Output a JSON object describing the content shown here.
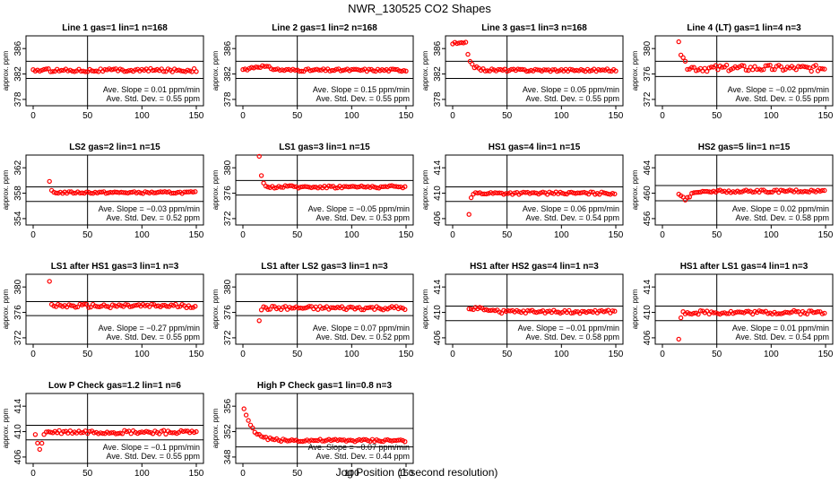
{
  "figure": {
    "title": "NWR_130525  CO2 Shapes",
    "xlabel": "Jog Position (1 second resolution)"
  },
  "chart_data": [
    {
      "type": "scatter",
      "title": "Line 1 gas=1 lin=1 n=168",
      "ylabel": "approx. ppm",
      "xlim": [
        0,
        150
      ],
      "ylim": [
        377,
        388
      ],
      "yticks": [
        378,
        382,
        386
      ],
      "xticks": [
        0,
        50,
        100,
        150
      ],
      "hlines": [
        384,
        381.3
      ],
      "vline": 50,
      "start_x": 0,
      "base": 382.6,
      "noise": 0.25,
      "spike": null,
      "slope": "Ave. Slope =  0.01  ppm/min",
      "std": "Ave. Std. Dev. =  0.55  ppm"
    },
    {
      "type": "scatter",
      "title": "Line 2 gas=1 lin=2 n=168",
      "ylabel": "approx. ppm",
      "xlim": [
        0,
        150
      ],
      "ylim": [
        377,
        388
      ],
      "yticks": [
        378,
        382,
        386
      ],
      "xticks": [
        0,
        50,
        100,
        150
      ],
      "hlines": [
        384,
        381.3
      ],
      "vline": 50,
      "start_x": 0,
      "base": 382.6,
      "noise": 0.2,
      "spike": {
        "type": "bump",
        "amp": 0.6,
        "center": 16,
        "width": 12
      },
      "slope": "Ave. Slope =  0.15  ppm/min",
      "std": "Ave. Std. Dev. =  0.55  ppm"
    },
    {
      "type": "scatter",
      "title": "Line 3 gas=1 lin=3 n=168",
      "ylabel": "approx. ppm",
      "xlim": [
        0,
        150
      ],
      "ylim": [
        377,
        388
      ],
      "yticks": [
        378,
        382,
        386
      ],
      "xticks": [
        0,
        50,
        100,
        150
      ],
      "hlines": [
        384,
        381.3
      ],
      "vline": 50,
      "start_x": 0,
      "base": 382.6,
      "noise": 0.2,
      "spike": {
        "type": "plateau",
        "amp": 4.2,
        "end": 12,
        "decay": 4
      },
      "slope": "Ave. Slope =  0.05  ppm/min",
      "std": "Ave. Std. Dev. =  0.55  ppm"
    },
    {
      "type": "scatter",
      "title": "Line 4 (LT) gas=1 lin=4 n=3",
      "ylabel": "approx. ppm",
      "xlim": [
        0,
        150
      ],
      "ylim": [
        371,
        382
      ],
      "yticks": [
        372,
        376,
        380
      ],
      "xticks": [
        0,
        50,
        100,
        150
      ],
      "hlines": [
        378,
        375.6
      ],
      "vline": 50,
      "start_x": 15,
      "base": 376.9,
      "noise": 0.5,
      "spike": {
        "type": "decay",
        "amp": 4.5,
        "tau": 3
      },
      "slope": "Ave. Slope = −0.02  ppm/min",
      "std": "Ave. Std. Dev. =  0.55  ppm"
    },
    {
      "type": "scatter",
      "title": "LS2 gas=2 lin=1 n=15",
      "ylabel": "approx. ppm",
      "xlim": [
        0,
        150
      ],
      "ylim": [
        353,
        364
      ],
      "yticks": [
        354,
        358,
        362
      ],
      "xticks": [
        0,
        50,
        100,
        150
      ],
      "hlines": [
        359,
        356.7
      ],
      "vline": 50,
      "start_x": 15,
      "base": 358.1,
      "noise": 0.15,
      "spike": {
        "type": "decay",
        "amp": 1.6,
        "tau": 1.2
      },
      "slope": "Ave. Slope = −0.03  ppm/min",
      "std": "Ave. Std. Dev. =  0.52  ppm"
    },
    {
      "type": "scatter",
      "title": "LS1 gas=3 lin=1 n=15",
      "ylabel": "approx. ppm",
      "xlim": [
        0,
        150
      ],
      "ylim": [
        371,
        382
      ],
      "yticks": [
        372,
        376,
        380
      ],
      "xticks": [
        0,
        50,
        100,
        150
      ],
      "hlines": [
        378,
        375.7
      ],
      "vline": 50,
      "start_x": 15,
      "base": 377,
      "noise": 0.2,
      "spike": {
        "type": "decay",
        "amp": 6,
        "tau": 1.5
      },
      "slope": "Ave. Slope = −0.05  ppm/min",
      "std": "Ave. Std. Dev. =  0.53  ppm"
    },
    {
      "type": "scatter",
      "title": "HS1 gas=4 lin=1 n=15",
      "ylabel": "approx. ppm",
      "xlim": [
        0,
        150
      ],
      "ylim": [
        405,
        416
      ],
      "yticks": [
        406,
        410,
        414
      ],
      "xticks": [
        0,
        50,
        100,
        150
      ],
      "hlines": [
        411,
        408.7
      ],
      "vline": 50,
      "start_x": 15,
      "base": 410,
      "noise": 0.2,
      "spike": {
        "type": "decay",
        "amp": -3.4,
        "tau": 1.2
      },
      "slope": "Ave. Slope =  0.06  ppm/min",
      "std": "Ave. Std. Dev. =  0.54  ppm"
    },
    {
      "type": "scatter",
      "title": "HS2 gas=5 lin=1 n=15",
      "ylabel": "approx. ppm",
      "xlim": [
        0,
        150
      ],
      "ylim": [
        455,
        466
      ],
      "yticks": [
        456,
        460,
        464
      ],
      "xticks": [
        0,
        50,
        100,
        150
      ],
      "hlines": [
        461.2,
        458.8
      ],
      "vline": 50,
      "start_x": 15,
      "base": 460.3,
      "noise": 0.2,
      "spike": {
        "type": "dip",
        "amp": -1.2,
        "center": 21,
        "width": 6
      },
      "slope": "Ave. Slope =  0.02  ppm/min",
      "std": "Ave. Std. Dev. =  0.58  ppm"
    },
    {
      "type": "scatter",
      "title": "LS1 after HS1 gas=3 lin=1 n=3",
      "ylabel": "approx. ppm",
      "xlim": [
        0,
        150
      ],
      "ylim": [
        371,
        382
      ],
      "yticks": [
        372,
        376,
        380
      ],
      "xticks": [
        0,
        50,
        100,
        150
      ],
      "hlines": [
        377.7,
        375.5
      ],
      "vline": 50,
      "start_x": 15,
      "base": 377,
      "noise": 0.3,
      "spike": {
        "type": "decay",
        "amp": 4,
        "tau": 1
      },
      "slope": "Ave. Slope = −0.27  ppm/min",
      "std": "Ave. Std. Dev. =  0.55  ppm"
    },
    {
      "type": "scatter",
      "title": "LS1 after LS2 gas=3 lin=1 n=3",
      "ylabel": "approx. ppm",
      "xlim": [
        0,
        150
      ],
      "ylim": [
        371,
        382
      ],
      "yticks": [
        372,
        376,
        380
      ],
      "xticks": [
        0,
        50,
        100,
        150
      ],
      "hlines": [
        377.7,
        375.5
      ],
      "vline": 50,
      "start_x": 15,
      "base": 376.7,
      "noise": 0.3,
      "spike": {
        "type": "decay",
        "amp": -1.8,
        "tau": 1
      },
      "slope": "Ave. Slope =  0.07  ppm/min",
      "std": "Ave. Std. Dev. =  0.52  ppm"
    },
    {
      "type": "scatter",
      "title": "HS1 after HS2 gas=4 lin=1 n=3",
      "ylabel": "approx. ppm",
      "xlim": [
        0,
        150
      ],
      "ylim": [
        405,
        416
      ],
      "yticks": [
        406,
        410,
        414
      ],
      "xticks": [
        0,
        50,
        100,
        150
      ],
      "hlines": [
        411,
        408.7
      ],
      "vline": 50,
      "start_x": 15,
      "base": 410.1,
      "noise": 0.25,
      "spike": {
        "type": "bump",
        "amp": 0.6,
        "center": 25,
        "width": 10
      },
      "slope": "Ave. Slope = −0.01  ppm/min",
      "std": "Ave. Std. Dev. =  0.58  ppm"
    },
    {
      "type": "scatter",
      "title": "HS1 after LS1 gas=4 lin=1 n=3",
      "ylabel": "approx. ppm",
      "xlim": [
        0,
        150
      ],
      "ylim": [
        405,
        416
      ],
      "yticks": [
        406,
        410,
        414
      ],
      "xticks": [
        0,
        50,
        100,
        150
      ],
      "hlines": [
        411,
        408.7
      ],
      "vline": 50,
      "start_x": 15,
      "base": 410,
      "noise": 0.3,
      "spike": {
        "type": "decay",
        "amp": -4.4,
        "tau": 1
      },
      "slope": "Ave. Slope =  0.01  ppm/min",
      "std": "Ave. Std. Dev. =  0.54  ppm"
    },
    {
      "type": "scatter",
      "title": "Low P Check gas=1.2 lin=1 n=6",
      "ylabel": "approx. ppm",
      "xlim": [
        0,
        150
      ],
      "ylim": [
        405,
        416
      ],
      "yticks": [
        406,
        410,
        414
      ],
      "xticks": [
        0,
        50,
        100,
        150
      ],
      "hlines": [
        411,
        408.7
      ],
      "vline": 50,
      "start_x": 2,
      "base": 409.9,
      "noise": 0.3,
      "spike": {
        "type": "dip",
        "amp": -2.6,
        "center": 6,
        "width": 3
      },
      "slope": "Ave. Slope = −0.1  ppm/min",
      "std": "Ave. Std. Dev. =  0.55  ppm"
    },
    {
      "type": "scatter",
      "title": "High P Check gas=1 lin=0.8 n=3",
      "ylabel": "approx. ppm",
      "xlim": [
        0,
        150
      ],
      "ylim": [
        347,
        358
      ],
      "yticks": [
        348,
        352,
        356
      ],
      "xticks": [
        0,
        50,
        100,
        150
      ],
      "hlines": [
        352.5,
        349.6
      ],
      "vline": 50,
      "start_x": 1,
      "base": 350.6,
      "noise": 0.2,
      "spike": {
        "type": "decay",
        "amp": 5,
        "tau": 8
      },
      "slope": "Ave. Slope = −0.07  ppm/min",
      "std": "Ave. Std. Dev. =  0.44  ppm"
    }
  ]
}
